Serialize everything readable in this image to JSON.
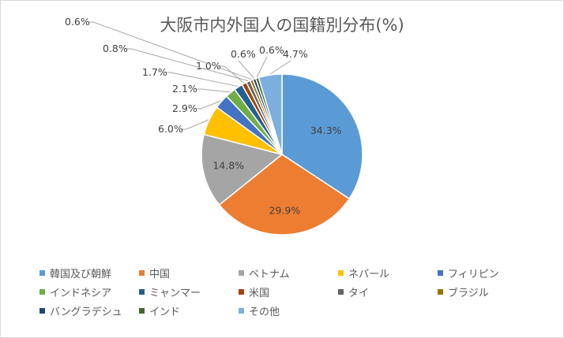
{
  "chart_data": {
    "type": "pie",
    "title": "大阪市内外国人の国籍別分布(%)",
    "categories": [
      "韓国及び朝鮮",
      "中国",
      "ベトナム",
      "ネパール",
      "フィリピン",
      "インドネシア",
      "ミャンマー",
      "米国",
      "タイ",
      "ブラジル",
      "バングラデシュ",
      "インド",
      "その他"
    ],
    "values": [
      34.3,
      29.9,
      14.8,
      6.0,
      2.9,
      2.1,
      1.7,
      1.0,
      0.8,
      0.6,
      0.6,
      0.6,
      4.7
    ],
    "data_labels": [
      "34.3%",
      "29.9%",
      "14.8%",
      "6.0%",
      "2.9%",
      "2.1%",
      "1.7%",
      "1.0%",
      "0.8%",
      "0.6%",
      "0.6%",
      "0.6%",
      "4.7%"
    ],
    "colors": [
      "#5b9bd5",
      "#ed7d31",
      "#a5a5a5",
      "#ffc000",
      "#4472c4",
      "#70ad47",
      "#255e91",
      "#9e480e",
      "#636363",
      "#997300",
      "#264478",
      "#43682b",
      "#7cafdd"
    ],
    "legend_position": "bottom"
  }
}
